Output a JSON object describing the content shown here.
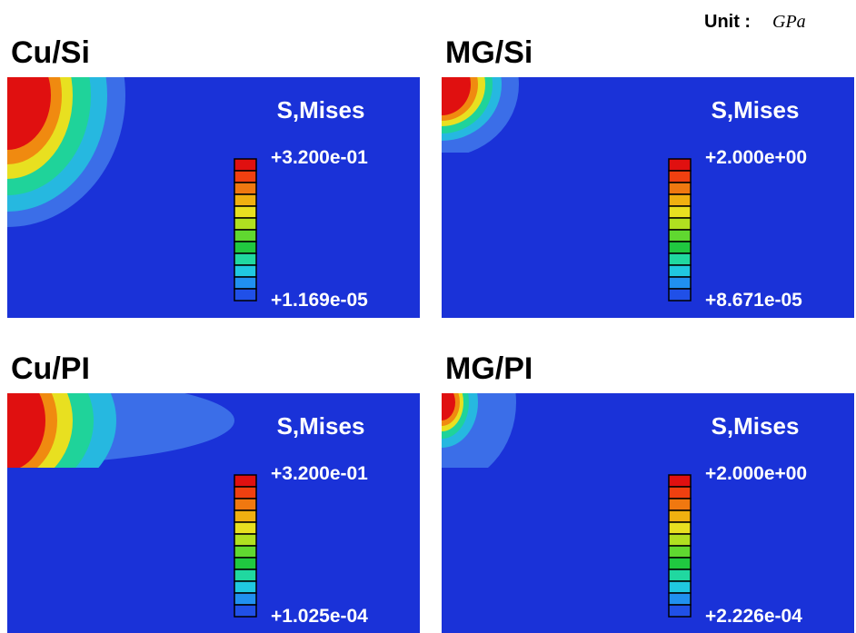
{
  "unit": {
    "label": "Unit :",
    "value": "GPa"
  },
  "panels": [
    {
      "title": "Cu/Si",
      "legend_title": "S,Mises",
      "max_label": "+3.200e-01",
      "min_label": "+1.169e-05"
    },
    {
      "title": "MG/Si",
      "legend_title": "S,Mises",
      "max_label": "+2.000e+00",
      "min_label": "+8.671e-05"
    },
    {
      "title": "Cu/PI",
      "legend_title": "S,Mises",
      "max_label": "+3.200e-01",
      "min_label": "+1.025e-04"
    },
    {
      "title": "MG/PI",
      "legend_title": "S,Mises",
      "max_label": "+2.000e+00",
      "min_label": "+2.226e-04"
    }
  ]
}
